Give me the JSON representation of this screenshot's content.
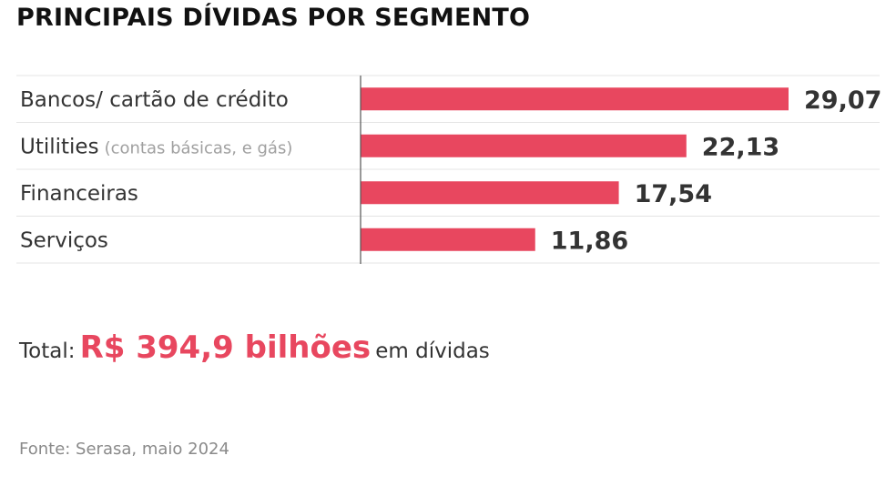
{
  "chart_data": {
    "type": "bar",
    "orientation": "horizontal",
    "title": "PRINCIPAIS DÍVIDAS POR SEGMENTO",
    "categories": [
      {
        "label": "Bancos/ cartão de crédito",
        "note": ""
      },
      {
        "label": "Utilities",
        "note": "(contas básicas, e gás)"
      },
      {
        "label": "Financeiras",
        "note": ""
      },
      {
        "label": "Serviços",
        "note": ""
      }
    ],
    "values": [
      29.07,
      22.13,
      17.54,
      11.86
    ],
    "value_labels": [
      "29,07",
      "22,13",
      "17,54",
      "11,86"
    ],
    "xlim": [
      0,
      29.07
    ],
    "grid": false,
    "bar_color": "#e8475f"
  },
  "total": {
    "prefix": "Total:",
    "amount": "R$ 394,9 bilhões",
    "suffix": "em dívidas"
  },
  "source": "Fonte: Serasa, maio 2024"
}
